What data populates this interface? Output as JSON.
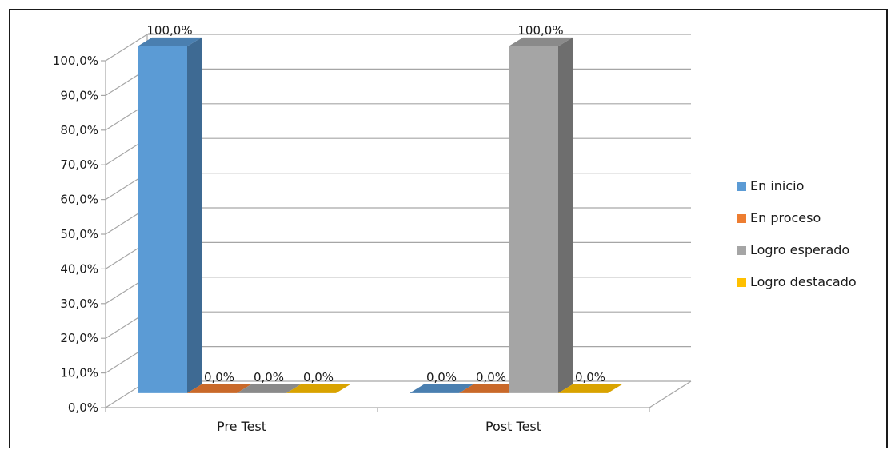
{
  "chart_data": {
    "type": "bar",
    "title": "",
    "xlabel": "",
    "ylabel": "",
    "categories": [
      "Pre Test",
      "Post Test"
    ],
    "series": [
      {
        "name": "En inicio",
        "values": [
          100.0,
          0.0
        ],
        "labels": [
          "100,0%",
          "0,0%"
        ],
        "color": "#5b9bd5",
        "side_color": "#3e6a93",
        "top_color": "#4a7fb0"
      },
      {
        "name": "En proceso",
        "values": [
          0.0,
          0.0
        ],
        "labels": [
          "0,0%",
          "0,0%"
        ],
        "color": "#ed7d31",
        "side_color": "#a85822",
        "top_color": "#c9692a"
      },
      {
        "name": "Logro esperado",
        "values": [
          0.0,
          100.0
        ],
        "labels": [
          "0,0%",
          "100,0%"
        ],
        "color": "#a5a5a5",
        "side_color": "#6e6e6e",
        "top_color": "#8a8a8a"
      },
      {
        "name": "Logro destacado",
        "values": [
          0.0,
          0.0
        ],
        "labels": [
          "0,0%",
          "0,0%"
        ],
        "color": "#ffc000",
        "side_color": "#b38600",
        "top_color": "#d9a300"
      }
    ],
    "ylim": [
      0,
      100
    ],
    "y_ticks": [
      0,
      10,
      20,
      30,
      40,
      50,
      60,
      70,
      80,
      90,
      100
    ],
    "y_tick_labels": [
      "0,0%",
      "10,0%",
      "20,0%",
      "30,0%",
      "40,0%",
      "50,0%",
      "60,0%",
      "70,0%",
      "80,0%",
      "90,0%",
      "100,0%"
    ],
    "grid": true,
    "legend_position": "right",
    "gridline_color": "#a6a6a6"
  }
}
